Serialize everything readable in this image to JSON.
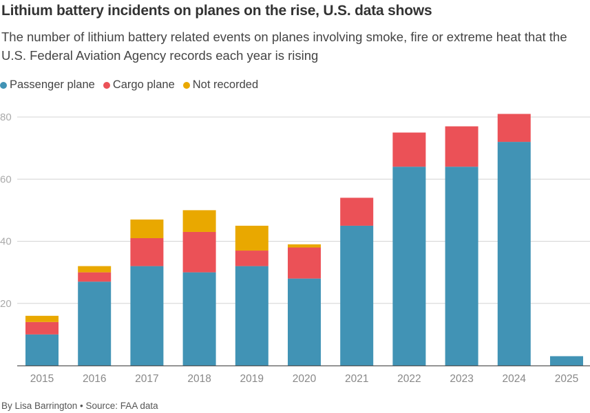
{
  "chart_data": {
    "type": "bar",
    "stacked": true,
    "title": "Lithium battery incidents on planes on the rise, U.S. data shows",
    "subtitle": "The number of lithium battery related events on planes involving smoke, fire or extreme heat that the U.S. Federal Aviation Agency records each year is rising",
    "xlabel": "",
    "ylabel": "",
    "categories": [
      "2015",
      "2016",
      "2017",
      "2018",
      "2019",
      "2020",
      "2021",
      "2022",
      "2023",
      "2024",
      "2025"
    ],
    "series": [
      {
        "name": "Passenger plane",
        "color": "#4193b5",
        "values": [
          10,
          27,
          32,
          30,
          32,
          28,
          45,
          64,
          64,
          72,
          3
        ]
      },
      {
        "name": "Cargo plane",
        "color": "#eb5157",
        "values": [
          4,
          3,
          9,
          13,
          5,
          10,
          9,
          11,
          13,
          9,
          0
        ]
      },
      {
        "name": "Not recorded",
        "color": "#e9a800",
        "values": [
          2,
          2,
          6,
          7,
          8,
          1,
          0,
          0,
          0,
          0,
          0
        ]
      }
    ],
    "ylim": [
      0,
      80
    ],
    "yticks": [
      20,
      40,
      60,
      80
    ],
    "grid": true,
    "legend_position": "top-left",
    "footer": "By Lisa Barrington • Source: FAA data"
  },
  "colors": {
    "grid": "#d4d4d4",
    "axis": "#555555"
  }
}
